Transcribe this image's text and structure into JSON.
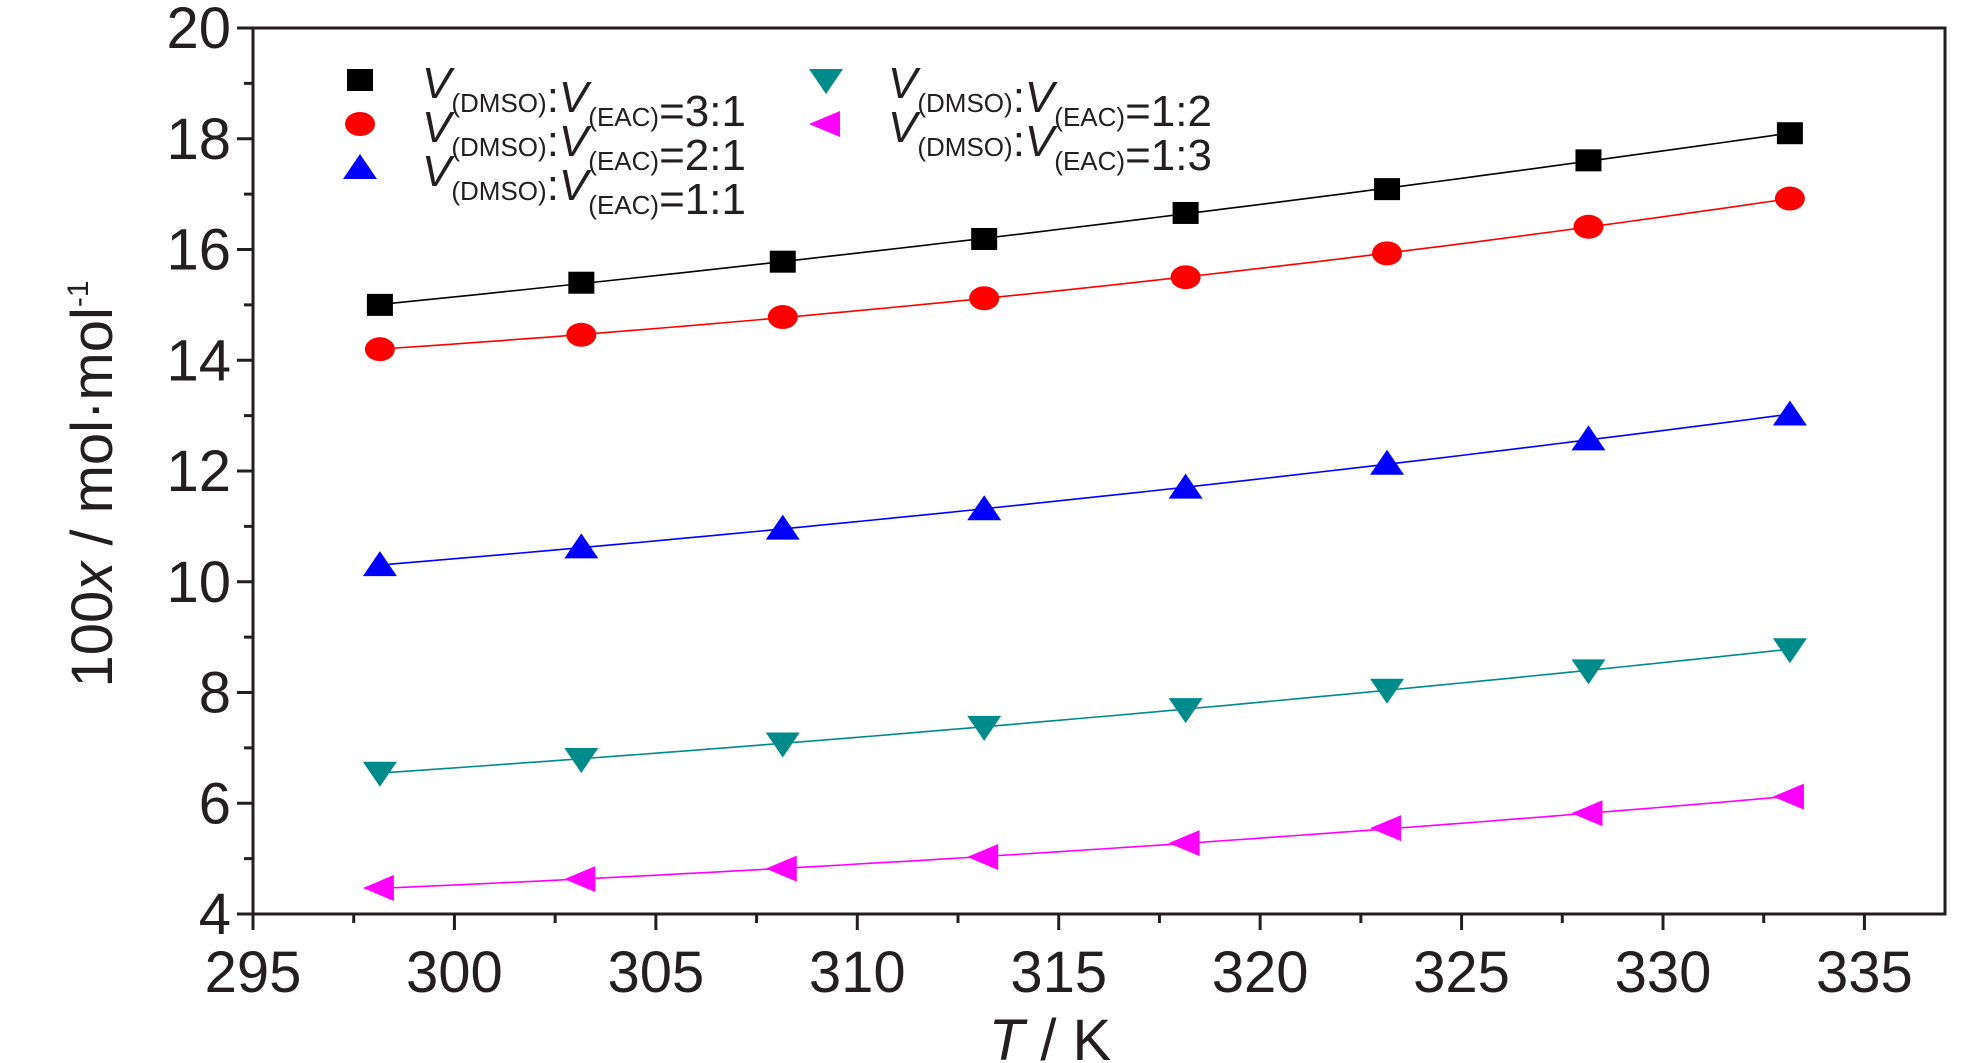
{
  "chart_data": {
    "type": "scatter",
    "title": "",
    "xlabel": {
      "var": "T",
      "rest": " / K"
    },
    "ylabel": {
      "pre": "100",
      "var": "x",
      "post": " / mol·mol",
      "sup": "-1"
    },
    "xlim": [
      295,
      337
    ],
    "ylim": [
      4,
      20
    ],
    "xticks": [
      295,
      300,
      305,
      310,
      315,
      320,
      325,
      330,
      335
    ],
    "yticks": [
      4,
      6,
      8,
      10,
      12,
      14,
      16,
      18,
      20
    ],
    "grid": false,
    "legend_position": "top-left",
    "series": [
      {
        "name": "V(DMSO):V(EAC)=3:1",
        "label_ratio": "=3:1",
        "marker": "square",
        "color": "#000000",
        "x": [
          298.15,
          303.15,
          308.15,
          313.15,
          318.15,
          323.15,
          328.15,
          333.15
        ],
        "y": [
          15.0,
          15.4,
          15.78,
          16.19,
          16.66,
          17.09,
          17.61,
          18.1
        ]
      },
      {
        "name": "V(DMSO):V(EAC)=2:1",
        "label_ratio": "=2:1",
        "marker": "circle",
        "color": "#ff0000",
        "x": [
          298.15,
          303.15,
          308.15,
          313.15,
          318.15,
          323.15,
          328.15,
          333.15
        ],
        "y": [
          14.2,
          14.46,
          14.78,
          15.12,
          15.5,
          15.93,
          16.41,
          16.92
        ]
      },
      {
        "name": "V(DMSO):V(EAC)=1:1",
        "label_ratio": "=1:1",
        "marker": "triangle-up",
        "color": "#0000ff",
        "x": [
          298.15,
          303.15,
          308.15,
          313.15,
          318.15,
          323.15,
          328.15,
          333.15
        ],
        "y": [
          10.3,
          10.62,
          10.96,
          11.31,
          11.7,
          12.13,
          12.57,
          13.02
        ]
      },
      {
        "name": "V(DMSO):V(EAC)=1:2",
        "label_ratio": "=1:2",
        "marker": "triangle-down",
        "color": "#008b8b",
        "x": [
          298.15,
          303.15,
          308.15,
          313.15,
          318.15,
          323.15,
          328.15,
          333.15
        ],
        "y": [
          6.55,
          6.8,
          7.08,
          7.38,
          7.7,
          8.05,
          8.4,
          8.78
        ]
      },
      {
        "name": "V(DMSO):V(EAC)=1:3",
        "label_ratio": "=1:3",
        "marker": "triangle-left",
        "color": "#ff00ff",
        "x": [
          298.15,
          303.15,
          308.15,
          313.15,
          318.15,
          323.15,
          328.15,
          333.15
        ],
        "y": [
          4.47,
          4.63,
          4.82,
          5.03,
          5.28,
          5.55,
          5.82,
          6.12
        ]
      }
    ],
    "legend_var": "V",
    "legend_sub_1": "(DMSO)",
    "legend_sep": ":",
    "legend_sub_2": "(EAC)"
  }
}
